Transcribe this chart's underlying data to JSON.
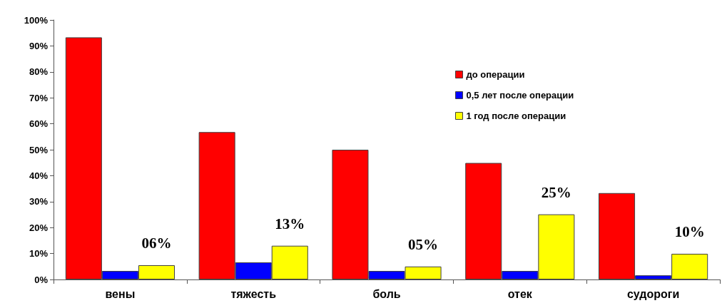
{
  "chart_data": {
    "type": "bar",
    "categories": [
      "вены",
      "тяжесть",
      "боль",
      "отек",
      "судороги"
    ],
    "series": [
      {
        "name": "до операции",
        "color": "#ff0000",
        "values": [
          93.3,
          56.8,
          50.0,
          44.9,
          33.3
        ]
      },
      {
        "name": "0,5 лет после операции",
        "color": "#0000ff",
        "values": [
          3.3,
          6.6,
          3.3,
          3.3,
          1.6
        ]
      },
      {
        "name": "1 год после операции",
        "color": "#ffff00",
        "values": [
          5.5,
          13.0,
          5.0,
          25.1,
          9.9
        ],
        "value_labels": [
          "06%",
          "13%",
          "05%",
          "25%",
          "10%"
        ]
      }
    ],
    "ylim": [
      0,
      100
    ],
    "yticks": [
      {
        "value": 0,
        "label": "0%"
      },
      {
        "value": 10,
        "label": "10%"
      },
      {
        "value": 20,
        "label": "20%"
      },
      {
        "value": 30,
        "label": "30%"
      },
      {
        "value": 40,
        "label": "40%"
      },
      {
        "value": 50,
        "label": "50%"
      },
      {
        "value": 60,
        "label": "60%"
      },
      {
        "value": 70,
        "label": "70%"
      },
      {
        "value": 80,
        "label": "80%"
      },
      {
        "value": 90,
        "label": "90%"
      },
      {
        "value": 100,
        "label": "100%"
      }
    ],
    "grid": false,
    "legend": "top right"
  }
}
